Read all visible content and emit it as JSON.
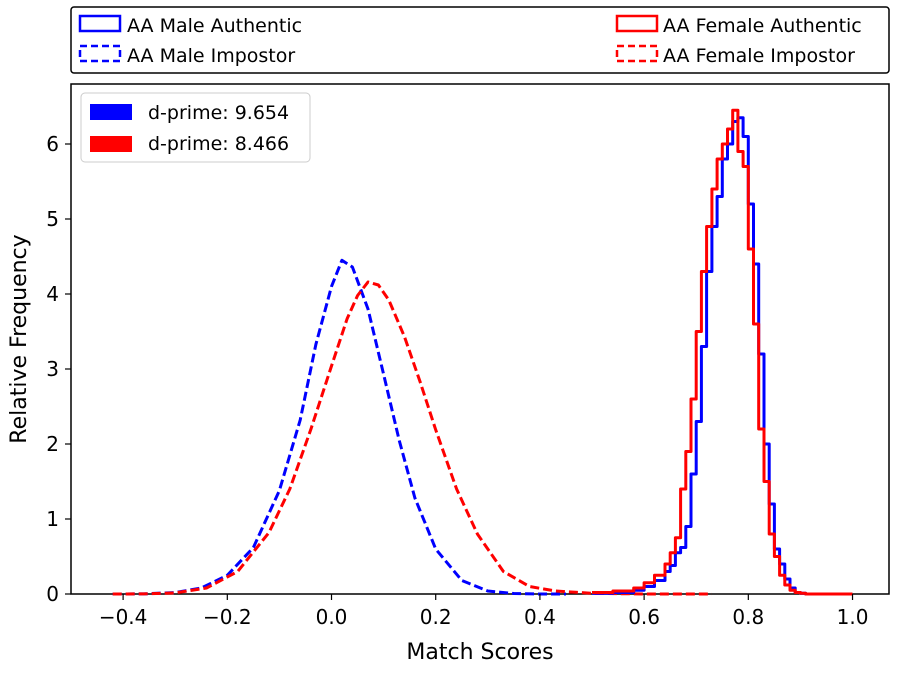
{
  "chart_data": {
    "type": "histogram",
    "xlabel": "Match Scores",
    "ylabel": "Relative Frequency",
    "xlim": [
      -0.5,
      1.07
    ],
    "ylim": [
      0,
      6.8
    ],
    "x_ticks": [
      -0.4,
      -0.2,
      0.0,
      0.2,
      0.4,
      0.6,
      0.8,
      1.0
    ],
    "x_tick_labels": [
      "−0.4",
      "−0.2",
      "0.0",
      "0.2",
      "0.4",
      "0.6",
      "0.8",
      "1.0"
    ],
    "y_ticks": [
      0,
      1,
      2,
      3,
      4,
      5,
      6
    ],
    "y_tick_labels": [
      "0",
      "1",
      "2",
      "3",
      "4",
      "5",
      "6"
    ],
    "top_legend": {
      "entries": [
        {
          "label": "AA Male Authentic",
          "color": "#0000ff",
          "style": "solid"
        },
        {
          "label": "AA Female Authentic",
          "color": "#ff0000",
          "style": "solid"
        },
        {
          "label": "AA Male Impostor",
          "color": "#0000ff",
          "style": "dashed"
        },
        {
          "label": "AA Female Impostor",
          "color": "#ff0000",
          "style": "dashed"
        }
      ]
    },
    "inner_legend": {
      "placement": "upper-left",
      "entries": [
        {
          "label": "d-prime: 9.654",
          "color": "#0000ff"
        },
        {
          "label": "d-prime: 8.466",
          "color": "#ff0000"
        }
      ]
    },
    "series": [
      {
        "name": "AA Male Impostor",
        "color": "#0000ff",
        "style": "dashed",
        "kind": "curve",
        "x": [
          -0.42,
          -0.36,
          -0.3,
          -0.25,
          -0.2,
          -0.15,
          -0.1,
          -0.06,
          -0.03,
          0.0,
          0.02,
          0.04,
          0.07,
          0.1,
          0.13,
          0.16,
          0.2,
          0.25,
          0.3,
          0.35,
          0.4,
          0.45
        ],
        "y": [
          0.0,
          0.002,
          0.02,
          0.08,
          0.25,
          0.62,
          1.38,
          2.32,
          3.33,
          4.1,
          4.45,
          4.36,
          3.8,
          2.93,
          2.05,
          1.28,
          0.6,
          0.18,
          0.04,
          0.006,
          0.0,
          0.0
        ]
      },
      {
        "name": "AA Female Impostor",
        "color": "#ff0000",
        "style": "dashed",
        "kind": "curve",
        "x": [
          -0.42,
          -0.36,
          -0.3,
          -0.24,
          -0.18,
          -0.12,
          -0.08,
          -0.04,
          0.0,
          0.03,
          0.05,
          0.07,
          0.09,
          0.11,
          0.14,
          0.17,
          0.2,
          0.24,
          0.28,
          0.33,
          0.38,
          0.43,
          0.5,
          0.6,
          0.73
        ],
        "y": [
          0.0,
          0.002,
          0.015,
          0.08,
          0.3,
          0.82,
          1.4,
          2.19,
          3.04,
          3.67,
          3.98,
          4.16,
          4.12,
          3.92,
          3.43,
          2.83,
          2.19,
          1.4,
          0.8,
          0.3,
          0.1,
          0.04,
          0.01,
          0.0,
          0.0
        ]
      },
      {
        "name": "AA Male Authentic",
        "color": "#0000ff",
        "style": "solid",
        "kind": "step",
        "x": [
          0.5,
          0.54,
          0.58,
          0.6,
          0.62,
          0.64,
          0.65,
          0.66,
          0.67,
          0.68,
          0.69,
          0.7,
          0.71,
          0.72,
          0.73,
          0.74,
          0.75,
          0.76,
          0.77,
          0.78,
          0.79,
          0.8,
          0.81,
          0.82,
          0.83,
          0.84,
          0.85,
          0.86,
          0.87,
          0.88,
          0.89,
          0.9,
          0.91,
          0.92,
          0.93,
          0.94,
          0.95,
          0.96,
          0.97,
          0.98,
          0.99
        ],
        "y": [
          0.01,
          0.02,
          0.05,
          0.1,
          0.18,
          0.3,
          0.38,
          0.55,
          0.62,
          0.9,
          1.6,
          2.3,
          3.3,
          4.3,
          4.9,
          5.3,
          5.8,
          6.0,
          6.3,
          6.35,
          6.1,
          5.2,
          4.4,
          3.2,
          2.0,
          1.2,
          0.6,
          0.4,
          0.2,
          0.08,
          0.02,
          0.01,
          0.0,
          0.0,
          0.0,
          0.0,
          0.0,
          0.0,
          0.0,
          0.0,
          0.0
        ]
      },
      {
        "name": "AA Female Authentic",
        "color": "#ff0000",
        "style": "solid",
        "kind": "step",
        "x": [
          0.5,
          0.54,
          0.58,
          0.6,
          0.62,
          0.64,
          0.65,
          0.66,
          0.67,
          0.68,
          0.69,
          0.7,
          0.71,
          0.72,
          0.73,
          0.74,
          0.75,
          0.76,
          0.77,
          0.78,
          0.79,
          0.8,
          0.81,
          0.82,
          0.83,
          0.84,
          0.85,
          0.86,
          0.87,
          0.88,
          0.89,
          0.9,
          0.91,
          0.92,
          0.93,
          0.94,
          0.95,
          0.96,
          0.97,
          0.98,
          0.99
        ],
        "y": [
          0.02,
          0.04,
          0.08,
          0.15,
          0.25,
          0.4,
          0.55,
          0.75,
          1.4,
          1.9,
          2.6,
          3.5,
          4.3,
          4.9,
          5.4,
          5.8,
          6.0,
          6.2,
          6.45,
          5.9,
          5.7,
          4.6,
          3.6,
          2.2,
          1.5,
          0.8,
          0.5,
          0.25,
          0.12,
          0.05,
          0.02,
          0.01,
          0.0,
          0.0,
          0.0,
          0.0,
          0.0,
          0.0,
          0.0,
          0.0,
          0.0
        ]
      }
    ]
  }
}
